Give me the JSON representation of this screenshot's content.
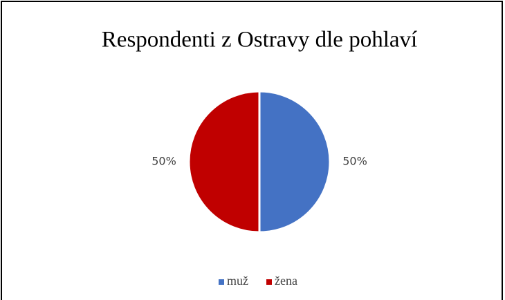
{
  "chart_data": {
    "type": "pie",
    "title": "Respondenti z Ostravy dle pohlaví",
    "categories": [
      "muž",
      "žena"
    ],
    "values": [
      50,
      50
    ],
    "value_labels": [
      "50%",
      "50%"
    ],
    "colors": [
      "#4472c4",
      "#c00000"
    ],
    "legend": "bottom"
  }
}
